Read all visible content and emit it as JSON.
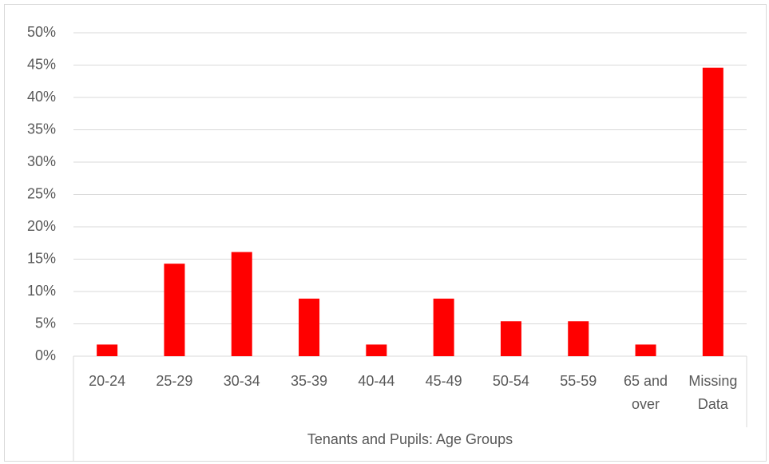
{
  "chart_data": {
    "type": "bar",
    "x_label": "Tenants and Pupils: Age Groups",
    "categories": [
      "20-24",
      "25-29",
      "30-34",
      "35-39",
      "40-44",
      "45-49",
      "50-54",
      "55-59",
      "65 and over",
      "Missing Data"
    ],
    "values": [
      1.8,
      14.3,
      16.1,
      8.9,
      1.8,
      8.9,
      5.4,
      5.4,
      1.8,
      44.6
    ],
    "color": "#ff0000",
    "ylim": [
      0,
      50
    ],
    "yticks": [
      {
        "value": 0,
        "label": "0%"
      },
      {
        "value": 5,
        "label": "5%"
      },
      {
        "value": 10,
        "label": "10%"
      },
      {
        "value": 15,
        "label": "15%"
      },
      {
        "value": 20,
        "label": "20%"
      },
      {
        "value": 25,
        "label": "25%"
      },
      {
        "value": 30,
        "label": "30%"
      },
      {
        "value": 35,
        "label": "35%"
      },
      {
        "value": 40,
        "label": "40%"
      },
      {
        "value": 45,
        "label": "45%"
      },
      {
        "value": 50,
        "label": "50%"
      }
    ],
    "grid": true
  }
}
